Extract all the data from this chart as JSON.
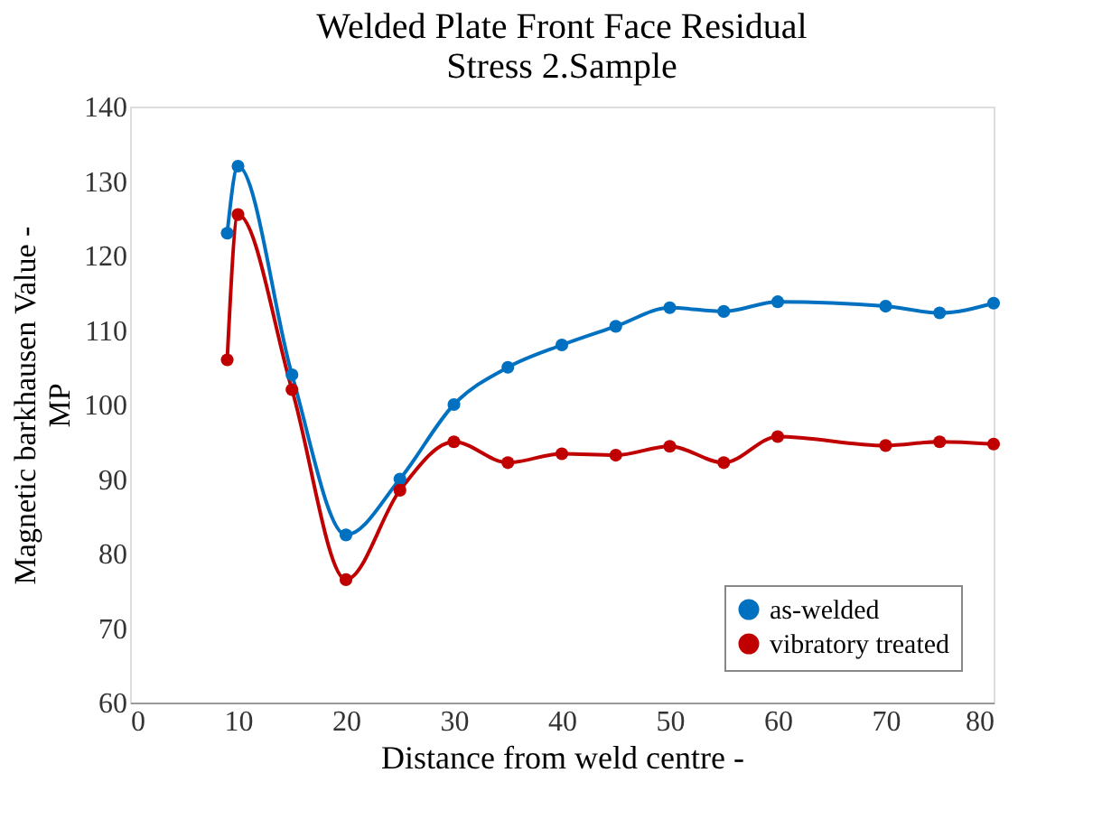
{
  "chart_data": {
    "type": "line",
    "title": [
      "Welded Plate Front Face Residual",
      "Stress 2.Sample"
    ],
    "xlabel": "Distance from weld centre -",
    "ylabel": [
      "Magnetic barkhausen Value -",
      "MP"
    ],
    "x": [
      9,
      10,
      15,
      20,
      25,
      30,
      35,
      40,
      45,
      50,
      55,
      60,
      70,
      75,
      80
    ],
    "series": [
      {
        "name": "as-welded",
        "color": "#0070c0",
        "values": [
          123,
          132,
          104,
          82.5,
          90,
          100,
          105,
          108,
          110.5,
          113,
          112.5,
          113.8,
          113.2,
          112.3,
          113.6
        ]
      },
      {
        "name": "vibratory treated",
        "color": "#c00000",
        "values": [
          106,
          125.5,
          102,
          76.5,
          88.5,
          95,
          92.2,
          93.4,
          93.2,
          94.4,
          92.2,
          95.7,
          94.5,
          95,
          94.7
        ]
      }
    ],
    "xlim": [
      0,
      80
    ],
    "xticks": [
      0,
      10,
      20,
      30,
      40,
      50,
      60,
      70,
      80
    ],
    "ylim": [
      60,
      140
    ],
    "yticks": [
      60,
      70,
      80,
      90,
      100,
      110,
      120,
      130,
      140
    ],
    "grid": false,
    "legend": "bottom right",
    "marker": "circle",
    "line_style": "solid"
  }
}
